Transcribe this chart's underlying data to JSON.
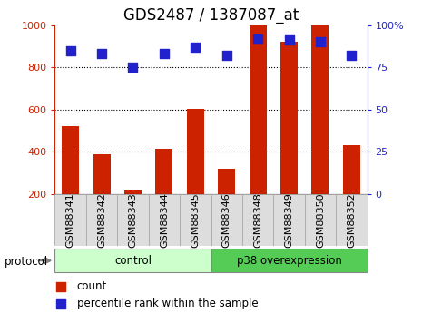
{
  "title": "GDS2487 / 1387087_at",
  "samples": [
    "GSM88341",
    "GSM88342",
    "GSM88343",
    "GSM88344",
    "GSM88345",
    "GSM88346",
    "GSM88348",
    "GSM88349",
    "GSM88350",
    "GSM88352"
  ],
  "counts": [
    520,
    390,
    220,
    415,
    605,
    320,
    1000,
    920,
    1000,
    430
  ],
  "percentiles": [
    85,
    83,
    75,
    83,
    87,
    82,
    92,
    91,
    90,
    82
  ],
  "groups": [
    {
      "label": "control",
      "start": 0,
      "end": 5,
      "color": "#ccffcc"
    },
    {
      "label": "p38 overexpression",
      "start": 5,
      "end": 10,
      "color": "#55cc55"
    }
  ],
  "bar_color": "#cc2200",
  "dot_color": "#2222cc",
  "left_ylim": [
    200,
    1000
  ],
  "right_ylim": [
    0,
    100
  ],
  "left_yticks": [
    200,
    400,
    600,
    800,
    1000
  ],
  "right_yticks": [
    0,
    25,
    50,
    75,
    100
  ],
  "right_yticklabels": [
    "0",
    "25",
    "50",
    "75",
    "100%"
  ],
  "grid_values": [
    400,
    600,
    800
  ],
  "dot_size": 55,
  "bar_width": 0.55,
  "protocol_label": "protocol",
  "legend_count": "count",
  "legend_percentile": "percentile rank within the sample",
  "bg_color": "#ffffff",
  "plot_bg": "#ffffff",
  "tick_label_color_left": "#cc2200",
  "tick_label_color_right": "#2222cc",
  "title_fontsize": 12,
  "axis_fontsize": 8,
  "label_fontsize": 8.5,
  "sample_box_color": "#dddddd",
  "sample_box_edge": "#aaaaaa"
}
